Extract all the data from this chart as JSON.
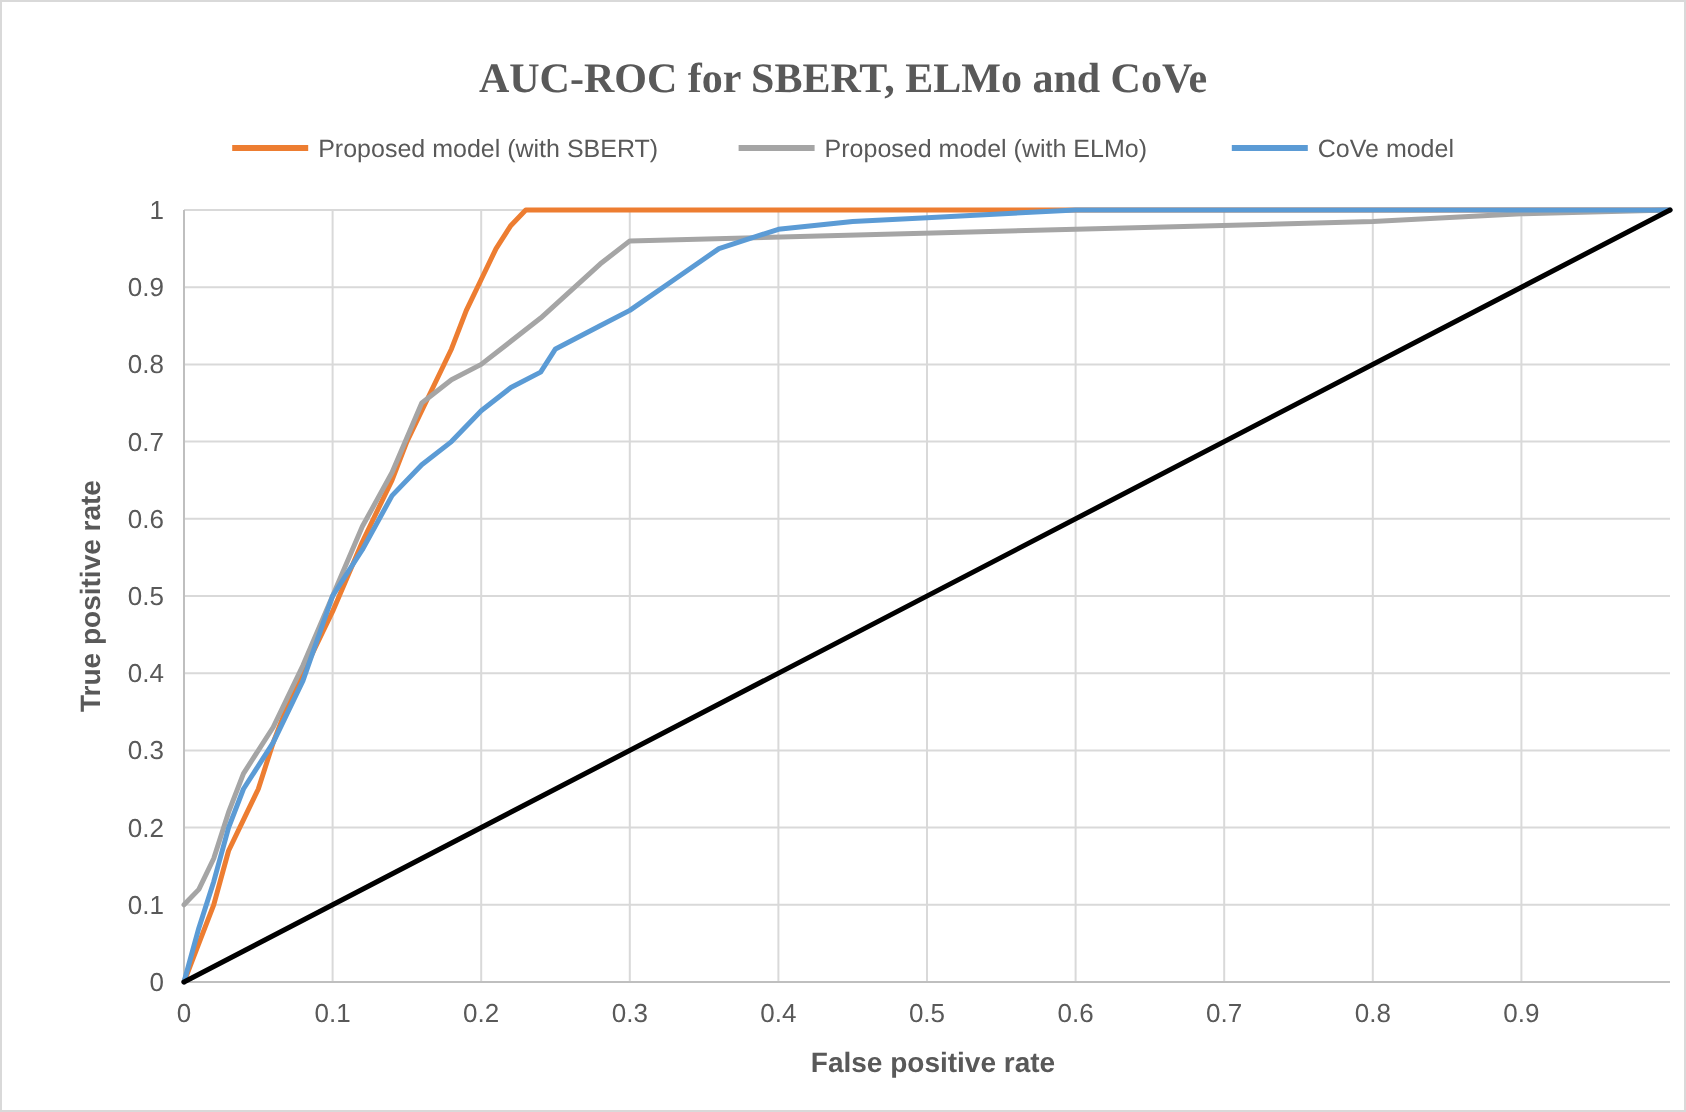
{
  "chart_data": {
    "type": "line",
    "title": "AUC-ROC for SBERT, ELMo and CoVe",
    "xlabel": "False positive rate",
    "ylabel": "True positive rate",
    "xlim": [
      0,
      1
    ],
    "ylim": [
      0,
      1
    ],
    "xticks": [
      0,
      0.1,
      0.2,
      0.3,
      0.4,
      0.5,
      0.6,
      0.7,
      0.8,
      0.9
    ],
    "yticks": [
      0,
      0.1,
      0.2,
      0.3,
      0.4,
      0.5,
      0.6,
      0.7,
      0.8,
      0.9,
      1
    ],
    "grid": true,
    "legend": "top",
    "marker": "none",
    "line_style": "solid",
    "series": [
      {
        "name": "Proposed model (with SBERT)",
        "color": "#ed7d31",
        "x": [
          0,
          0.01,
          0.02,
          0.03,
          0.04,
          0.05,
          0.06,
          0.07,
          0.08,
          0.1,
          0.12,
          0.14,
          0.15,
          0.16,
          0.18,
          0.19,
          0.2,
          0.21,
          0.22,
          0.23,
          1
        ],
        "values": [
          0,
          0.05,
          0.1,
          0.17,
          0.21,
          0.25,
          0.31,
          0.36,
          0.4,
          0.48,
          0.57,
          0.65,
          0.7,
          0.74,
          0.82,
          0.87,
          0.91,
          0.95,
          0.98,
          1,
          1
        ]
      },
      {
        "name": "Proposed model (with ELMo)",
        "color": "#a5a5a5",
        "x": [
          0,
          0.01,
          0.02,
          0.03,
          0.04,
          0.06,
          0.08,
          0.1,
          0.12,
          0.14,
          0.16,
          0.18,
          0.2,
          0.24,
          0.28,
          0.3,
          0.6,
          0.8,
          0.9,
          1
        ],
        "values": [
          0.1,
          0.12,
          0.16,
          0.22,
          0.27,
          0.33,
          0.41,
          0.5,
          0.59,
          0.66,
          0.75,
          0.78,
          0.8,
          0.86,
          0.93,
          0.96,
          0.975,
          0.985,
          0.995,
          1
        ]
      },
      {
        "name": "CoVe model",
        "color": "#5b9bd5",
        "x": [
          0,
          0.01,
          0.02,
          0.03,
          0.04,
          0.06,
          0.08,
          0.1,
          0.12,
          0.14,
          0.16,
          0.18,
          0.2,
          0.22,
          0.24,
          0.25,
          0.28,
          0.3,
          0.33,
          0.36,
          0.4,
          0.45,
          0.5,
          0.6,
          1
        ],
        "values": [
          0,
          0.07,
          0.13,
          0.2,
          0.25,
          0.31,
          0.39,
          0.5,
          0.56,
          0.63,
          0.67,
          0.7,
          0.74,
          0.77,
          0.79,
          0.82,
          0.85,
          0.87,
          0.91,
          0.95,
          0.975,
          0.985,
          0.99,
          1,
          1
        ]
      },
      {
        "color": "#000000",
        "x": [
          0,
          1
        ],
        "values": [
          0,
          1
        ]
      }
    ]
  }
}
